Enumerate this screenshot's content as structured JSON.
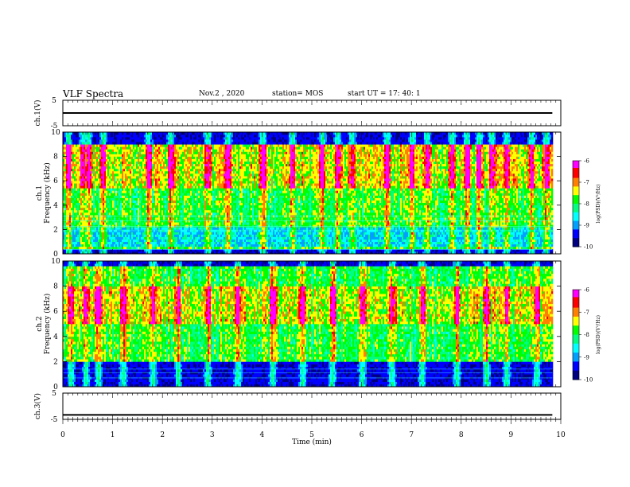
{
  "header": {
    "title": "VLF Spectra",
    "date": "Nov.2 , 2020",
    "station": "station= MOS",
    "start": "start UT = 17: 40: 1"
  },
  "chart_data": [
    {
      "type": "line",
      "panel": "ch1-waveform",
      "ylabel": "ch.1(V)",
      "ylim": [
        -5,
        5
      ],
      "yticks": [
        "5",
        "-5"
      ],
      "x": [
        0,
        9.83
      ],
      "y": [
        0,
        0
      ],
      "color": "#000000"
    },
    {
      "type": "heatmap",
      "panel": "ch1-spectrogram",
      "ylabel_lines": [
        "ch.1",
        "Frequency (kHz)"
      ],
      "ylim": [
        0,
        10
      ],
      "yticks": [
        "0",
        "2",
        "4",
        "6",
        "8",
        "10"
      ],
      "xlim": [
        0,
        10
      ],
      "data_end_min": 9.83,
      "colorbar": {
        "label": "log(PSD)(V²/Hz)",
        "range": [
          -10,
          -6
        ],
        "ticks": [
          "-6",
          "-7",
          "-8",
          "-9",
          "-10"
        ]
      },
      "dominant_band_khz": [
        0.5,
        9.0
      ],
      "strong_band_khz": [
        5.5,
        9.0
      ],
      "emission_bursts_min": [
        0.1,
        0.4,
        0.5,
        0.8,
        1.7,
        2.15,
        2.9,
        3.3,
        4.0,
        4.6,
        5.2,
        5.5,
        5.8,
        6.5,
        7.0,
        7.3,
        7.8,
        8.1,
        8.35,
        8.6,
        8.9,
        9.4,
        9.7
      ]
    },
    {
      "type": "heatmap",
      "panel": "ch2-spectrogram",
      "ylabel_lines": [
        "ch.2",
        "Frequency (kHz)"
      ],
      "ylim": [
        0,
        10
      ],
      "yticks": [
        "0",
        "2",
        "4",
        "6",
        "8",
        "10"
      ],
      "xlim": [
        0,
        10
      ],
      "data_end_min": 9.83,
      "colorbar": {
        "label": "log(PSD)(V²/Hz)",
        "range": [
          -10,
          -6
        ],
        "ticks": [
          "-6",
          "-7",
          "-8",
          "-9",
          "-10"
        ]
      },
      "dominant_band_khz": [
        2.0,
        9.5
      ],
      "strong_band_khz": [
        5.0,
        8.0
      ],
      "emission_bursts_min": [
        0.15,
        0.45,
        0.7,
        1.2,
        1.8,
        2.3,
        2.9,
        3.5,
        4.2,
        4.8,
        5.4,
        6.0,
        6.6,
        7.2,
        7.9,
        8.5,
        8.9,
        9.5
      ]
    },
    {
      "type": "line",
      "panel": "ch3-waveform",
      "ylabel": "ch.3(V)",
      "ylim": [
        -5,
        5
      ],
      "yticks": [
        "5",
        "-5"
      ],
      "x": [
        0,
        9.83
      ],
      "y": [
        -3.3,
        -3.3
      ],
      "color": "#000000"
    }
  ],
  "x_axis": {
    "label": "Time (min)",
    "range": [
      0,
      10
    ],
    "ticks": [
      "0",
      "1",
      "2",
      "3",
      "4",
      "5",
      "6",
      "7",
      "8",
      "9",
      "10"
    ]
  },
  "colors": {
    "colormap": [
      "#000080",
      "#0000ff",
      "#00a0ff",
      "#00ffff",
      "#00ff80",
      "#00ff00",
      "#ffff00",
      "#ff8000",
      "#ff0000",
      "#ff00ff",
      "#ffffff"
    ],
    "background": "#000000"
  }
}
